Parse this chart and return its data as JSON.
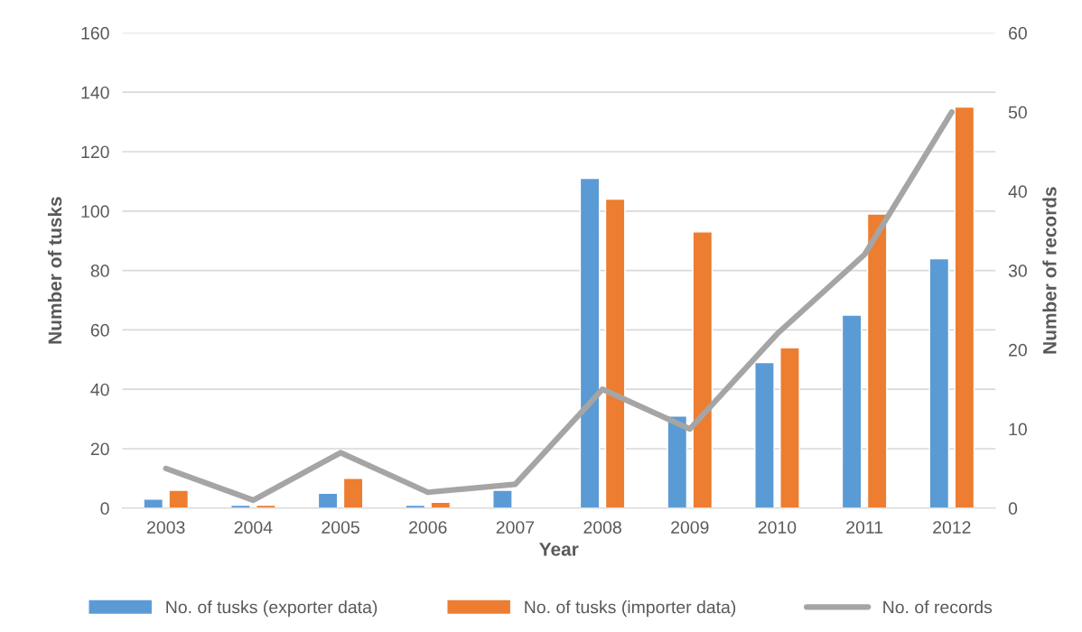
{
  "chart_data": {
    "type": "bar",
    "xlabel": "Year",
    "ylabel": "Number of tusks",
    "y2label": "Number of records",
    "categories": [
      "2003",
      "2004",
      "2005",
      "2006",
      "2007",
      "2008",
      "2009",
      "2010",
      "2011",
      "2012"
    ],
    "series": [
      {
        "name": "No. of tusks (exporter data)",
        "color": "#5b9bd5",
        "values": [
          3,
          1,
          5,
          1,
          6,
          111,
          31,
          49,
          65,
          84
        ]
      },
      {
        "name": "No. of tusks (importer data)",
        "color": "#ed7d31",
        "values": [
          6,
          1,
          10,
          2,
          null,
          104,
          93,
          54,
          99,
          135
        ]
      },
      {
        "name": "No. of records",
        "type": "line",
        "axis": "y2",
        "color": "#a5a5a5",
        "values": [
          5,
          1,
          7,
          2,
          3,
          15,
          10,
          22,
          32,
          50
        ]
      }
    ],
    "ylim": [
      0,
      160
    ],
    "yticks": [
      0,
      20,
      40,
      60,
      80,
      100,
      120,
      140,
      160
    ],
    "y2lim": [
      0,
      60
    ],
    "y2ticks": [
      0,
      10,
      20,
      30,
      40,
      50,
      60
    ],
    "grid": "y",
    "legend": "bottom",
    "marker": "none",
    "line_style": "solid"
  }
}
